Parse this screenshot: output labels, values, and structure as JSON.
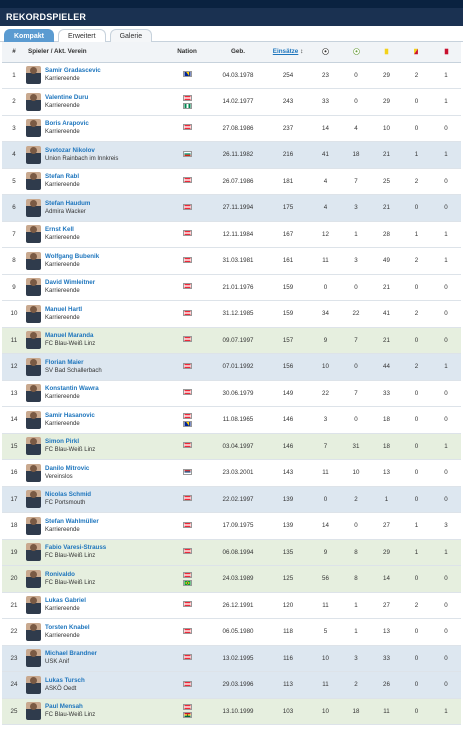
{
  "header": {
    "title": "REKORDSPIELER"
  },
  "tabs": [
    {
      "label": "Kompakt",
      "active": true
    },
    {
      "label": "Erweitert",
      "active": false
    },
    {
      "label": "Galerie",
      "active": false
    }
  ],
  "columns": {
    "rank": "#",
    "player": "Spieler / Akt. Verein",
    "nation": "Nation",
    "born": "Geb.",
    "apps": "Einsätze",
    "icons": [
      "goal-icon",
      "assist-icon",
      "yellow-card-icon",
      "yellow-red-card-icon",
      "red-card-icon"
    ]
  },
  "colors": {
    "header_bg": "#1a3151",
    "tab_active": "#5b9bd1",
    "link": "#1d75bd",
    "row_blue": "#dde7f0",
    "row_green": "#e6efdf"
  },
  "rows": [
    {
      "rank": "1",
      "name": "Samir Gradascevic",
      "club": "Karriereende",
      "flags": [
        "bosnia"
      ],
      "born": "04.03.1978",
      "apps": "254",
      "goals": "23",
      "assists": "0",
      "yellow": "29",
      "yellowred": "2",
      "red": "1",
      "hl": ""
    },
    {
      "rank": "2",
      "name": "Valentine Duru",
      "club": "Karriereende",
      "flags": [
        "austria",
        "nigeria"
      ],
      "born": "14.02.1977",
      "apps": "243",
      "goals": "33",
      "assists": "0",
      "yellow": "29",
      "yellowred": "0",
      "red": "1",
      "hl": ""
    },
    {
      "rank": "3",
      "name": "Boris Arapovic",
      "club": "Karriereende",
      "flags": [
        "austria"
      ],
      "born": "27.08.1986",
      "apps": "237",
      "goals": "14",
      "assists": "4",
      "yellow": "10",
      "yellowred": "0",
      "red": "0",
      "hl": ""
    },
    {
      "rank": "4",
      "name": "Svetozar Nikolov",
      "club": "Union Rainbach im Innkreis",
      "flags": [
        "bulgaria"
      ],
      "born": "26.11.1982",
      "apps": "216",
      "goals": "41",
      "assists": "18",
      "yellow": "21",
      "yellowred": "1",
      "red": "1",
      "hl": "b"
    },
    {
      "rank": "5",
      "name": "Stefan Rabl",
      "club": "Karriereende",
      "flags": [
        "austria"
      ],
      "born": "26.07.1986",
      "apps": "181",
      "goals": "4",
      "assists": "7",
      "yellow": "25",
      "yellowred": "2",
      "red": "0",
      "hl": ""
    },
    {
      "rank": "6",
      "name": "Stefan Haudum",
      "club": "Admira Wacker",
      "flags": [
        "austria"
      ],
      "born": "27.11.1994",
      "apps": "175",
      "goals": "4",
      "assists": "3",
      "yellow": "21",
      "yellowred": "0",
      "red": "0",
      "hl": "b"
    },
    {
      "rank": "7",
      "name": "Ernst Kell",
      "club": "Karriereende",
      "flags": [
        "austria"
      ],
      "born": "12.11.1984",
      "apps": "167",
      "goals": "12",
      "assists": "1",
      "yellow": "28",
      "yellowred": "1",
      "red": "1",
      "hl": ""
    },
    {
      "rank": "8",
      "name": "Wolfgang Bubenik",
      "club": "Karriereende",
      "flags": [
        "austria"
      ],
      "born": "31.03.1981",
      "apps": "161",
      "goals": "11",
      "assists": "3",
      "yellow": "49",
      "yellowred": "2",
      "red": "1",
      "hl": ""
    },
    {
      "rank": "9",
      "name": "David Wimleitner",
      "club": "Karriereende",
      "flags": [
        "austria"
      ],
      "born": "21.01.1976",
      "apps": "159",
      "goals": "0",
      "assists": "0",
      "yellow": "21",
      "yellowred": "0",
      "red": "0",
      "hl": ""
    },
    {
      "rank": "10",
      "name": "Manuel Hartl",
      "club": "Karriereende",
      "flags": [
        "austria"
      ],
      "born": "31.12.1985",
      "apps": "159",
      "goals": "34",
      "assists": "22",
      "yellow": "41",
      "yellowred": "2",
      "red": "0",
      "hl": ""
    },
    {
      "rank": "11",
      "name": "Manuel Maranda",
      "club": "FC Blau-Weiß Linz",
      "flags": [
        "austria"
      ],
      "born": "09.07.1997",
      "apps": "157",
      "goals": "9",
      "assists": "7",
      "yellow": "21",
      "yellowred": "0",
      "red": "0",
      "hl": "g"
    },
    {
      "rank": "12",
      "name": "Florian Maier",
      "club": "SV Bad Schallerbach",
      "flags": [
        "austria"
      ],
      "born": "07.01.1992",
      "apps": "156",
      "goals": "10",
      "assists": "0",
      "yellow": "44",
      "yellowred": "2",
      "red": "1",
      "hl": "b"
    },
    {
      "rank": "13",
      "name": "Konstantin Wawra",
      "club": "Karriereende",
      "flags": [
        "austria"
      ],
      "born": "30.06.1979",
      "apps": "149",
      "goals": "22",
      "assists": "7",
      "yellow": "33",
      "yellowred": "0",
      "red": "0",
      "hl": ""
    },
    {
      "rank": "14",
      "name": "Samir Hasanovic",
      "club": "Karriereende",
      "flags": [
        "austria",
        "bosnia"
      ],
      "born": "11.08.1965",
      "apps": "146",
      "goals": "3",
      "assists": "0",
      "yellow": "18",
      "yellowred": "0",
      "red": "0",
      "hl": ""
    },
    {
      "rank": "15",
      "name": "Simon Pirkl",
      "club": "FC Blau-Weiß Linz",
      "flags": [
        "austria"
      ],
      "born": "03.04.1997",
      "apps": "146",
      "goals": "7",
      "assists": "31",
      "yellow": "18",
      "yellowred": "0",
      "red": "1",
      "hl": "g"
    },
    {
      "rank": "16",
      "name": "Danilo Mitrovic",
      "club": "Vereinslos",
      "flags": [
        "serbia"
      ],
      "born": "23.03.2001",
      "apps": "143",
      "goals": "11",
      "assists": "10",
      "yellow": "13",
      "yellowred": "0",
      "red": "0",
      "hl": ""
    },
    {
      "rank": "17",
      "name": "Nicolas Schmid",
      "club": "FC Portsmouth",
      "flags": [
        "austria"
      ],
      "born": "22.02.1997",
      "apps": "139",
      "goals": "0",
      "assists": "2",
      "yellow": "1",
      "yellowred": "0",
      "red": "0",
      "hl": "b"
    },
    {
      "rank": "18",
      "name": "Stefan Wahlmüller",
      "club": "Karriereende",
      "flags": [
        "austria"
      ],
      "born": "17.09.1975",
      "apps": "139",
      "goals": "14",
      "assists": "0",
      "yellow": "27",
      "yellowred": "1",
      "red": "3",
      "hl": ""
    },
    {
      "rank": "19",
      "name": "Fabio Varesi-Strauss",
      "club": "FC Blau-Weiß Linz",
      "flags": [
        "austria"
      ],
      "born": "06.08.1994",
      "apps": "135",
      "goals": "9",
      "assists": "8",
      "yellow": "29",
      "yellowred": "1",
      "red": "1",
      "hl": "g"
    },
    {
      "rank": "20",
      "name": "Ronivaldo",
      "club": "FC Blau-Weiß Linz",
      "flags": [
        "austria",
        "brazil"
      ],
      "born": "24.03.1989",
      "apps": "125",
      "goals": "56",
      "assists": "8",
      "yellow": "14",
      "yellowred": "0",
      "red": "0",
      "hl": "g"
    },
    {
      "rank": "21",
      "name": "Lukas Gabriel",
      "club": "Karriereende",
      "flags": [
        "austria"
      ],
      "born": "26.12.1991",
      "apps": "120",
      "goals": "11",
      "assists": "1",
      "yellow": "27",
      "yellowred": "2",
      "red": "0",
      "hl": ""
    },
    {
      "rank": "22",
      "name": "Torsten Knabel",
      "club": "Karriereende",
      "flags": [
        "austria"
      ],
      "born": "06.05.1980",
      "apps": "118",
      "goals": "5",
      "assists": "1",
      "yellow": "13",
      "yellowred": "0",
      "red": "0",
      "hl": ""
    },
    {
      "rank": "23",
      "name": "Michael Brandner",
      "club": "USK Anif",
      "flags": [
        "austria"
      ],
      "born": "13.02.1995",
      "apps": "116",
      "goals": "10",
      "assists": "3",
      "yellow": "33",
      "yellowred": "0",
      "red": "0",
      "hl": "b"
    },
    {
      "rank": "24",
      "name": "Lukas Tursch",
      "club": "ASKÖ Oedt",
      "flags": [
        "austria"
      ],
      "born": "29.03.1996",
      "apps": "113",
      "goals": "11",
      "assists": "2",
      "yellow": "26",
      "yellowred": "0",
      "red": "0",
      "hl": "b"
    },
    {
      "rank": "25",
      "name": "Paul Mensah",
      "club": "FC Blau-Weiß Linz",
      "flags": [
        "austria",
        "ghana"
      ],
      "born": "13.10.1999",
      "apps": "103",
      "goals": "10",
      "assists": "18",
      "yellow": "11",
      "yellowred": "0",
      "red": "1",
      "hl": "g"
    }
  ]
}
